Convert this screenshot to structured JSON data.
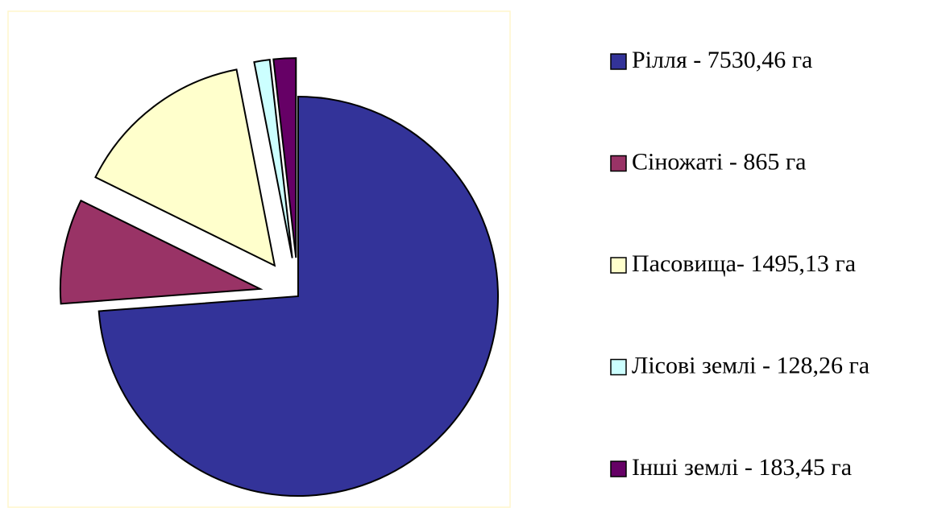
{
  "chart_data": {
    "type": "pie",
    "categories": [
      "Рілля - 7530,46 га",
      "Сіножаті - 865 га",
      "Пасовища- 1495,13 га",
      "Лісові землі - 128,26 га",
      "Інші землі - 183,45 га"
    ],
    "values": [
      7530.46,
      865,
      1495.13,
      128.26,
      183.45
    ],
    "colors": [
      "#333399",
      "#993366",
      "#ffffcc",
      "#ccffff",
      "#660066"
    ],
    "legend": "right"
  }
}
